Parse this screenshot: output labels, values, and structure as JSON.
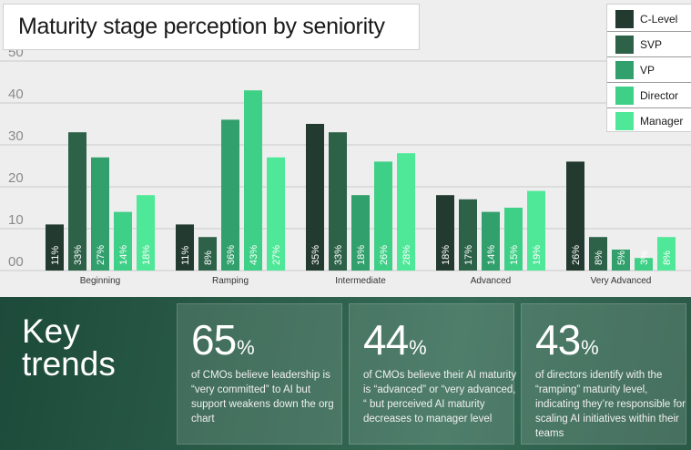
{
  "chart_data": {
    "type": "bar",
    "title": "Maturity stage perception by seniority",
    "xlabel": "",
    "ylabel": "",
    "ylim": [
      0,
      50
    ],
    "yticks": [
      "00",
      "10",
      "20",
      "30",
      "40",
      "50"
    ],
    "categories": [
      "Beginning",
      "Ramping",
      "Intermediate",
      "Advanced",
      "Very Advanced"
    ],
    "series": [
      {
        "name": "C-Level",
        "color": "#223a30",
        "values": [
          11,
          11,
          35,
          18,
          26
        ],
        "labels": [
          "11%",
          "11%",
          "35%",
          "18%",
          "26%"
        ]
      },
      {
        "name": "SVP",
        "color": "#2d6249",
        "values": [
          33,
          8,
          33,
          17,
          8
        ],
        "labels": [
          "33%",
          "8%",
          "33%",
          "17%",
          "8%"
        ]
      },
      {
        "name": "VP",
        "color": "#32a06c",
        "values": [
          27,
          36,
          18,
          14,
          5
        ],
        "labels": [
          "27%",
          "36%",
          "18%",
          "14%",
          "5%"
        ]
      },
      {
        "name": "Director",
        "color": "#3ed086",
        "values": [
          14,
          43,
          26,
          15,
          3
        ],
        "labels": [
          "14%",
          "43%",
          "26%",
          "15%",
          "3%"
        ]
      },
      {
        "name": "Manager",
        "color": "#4fe898",
        "values": [
          18,
          27,
          28,
          19,
          8
        ],
        "labels": [
          "18%",
          "27%",
          "28%",
          "19%",
          "8%"
        ]
      }
    ],
    "grid": true,
    "legend_position": "top-right"
  },
  "trends": {
    "heading_line1": "Key",
    "heading_line2": "trends",
    "cards": [
      {
        "value": "65",
        "unit": "%",
        "text": "of CMOs believe leadership is “very committed” to AI but support weakens down the org chart"
      },
      {
        "value": "44",
        "unit": "%",
        "text": "of CMOs believe their AI maturity is “advanced” or “very advanced, “ but perceived AI maturity decreases to manager level"
      },
      {
        "value": "43",
        "unit": "%",
        "text": "of directors identify with the “ramping” maturity level, indicating they’re responsible for scaling AI initiatives within their teams"
      }
    ]
  }
}
